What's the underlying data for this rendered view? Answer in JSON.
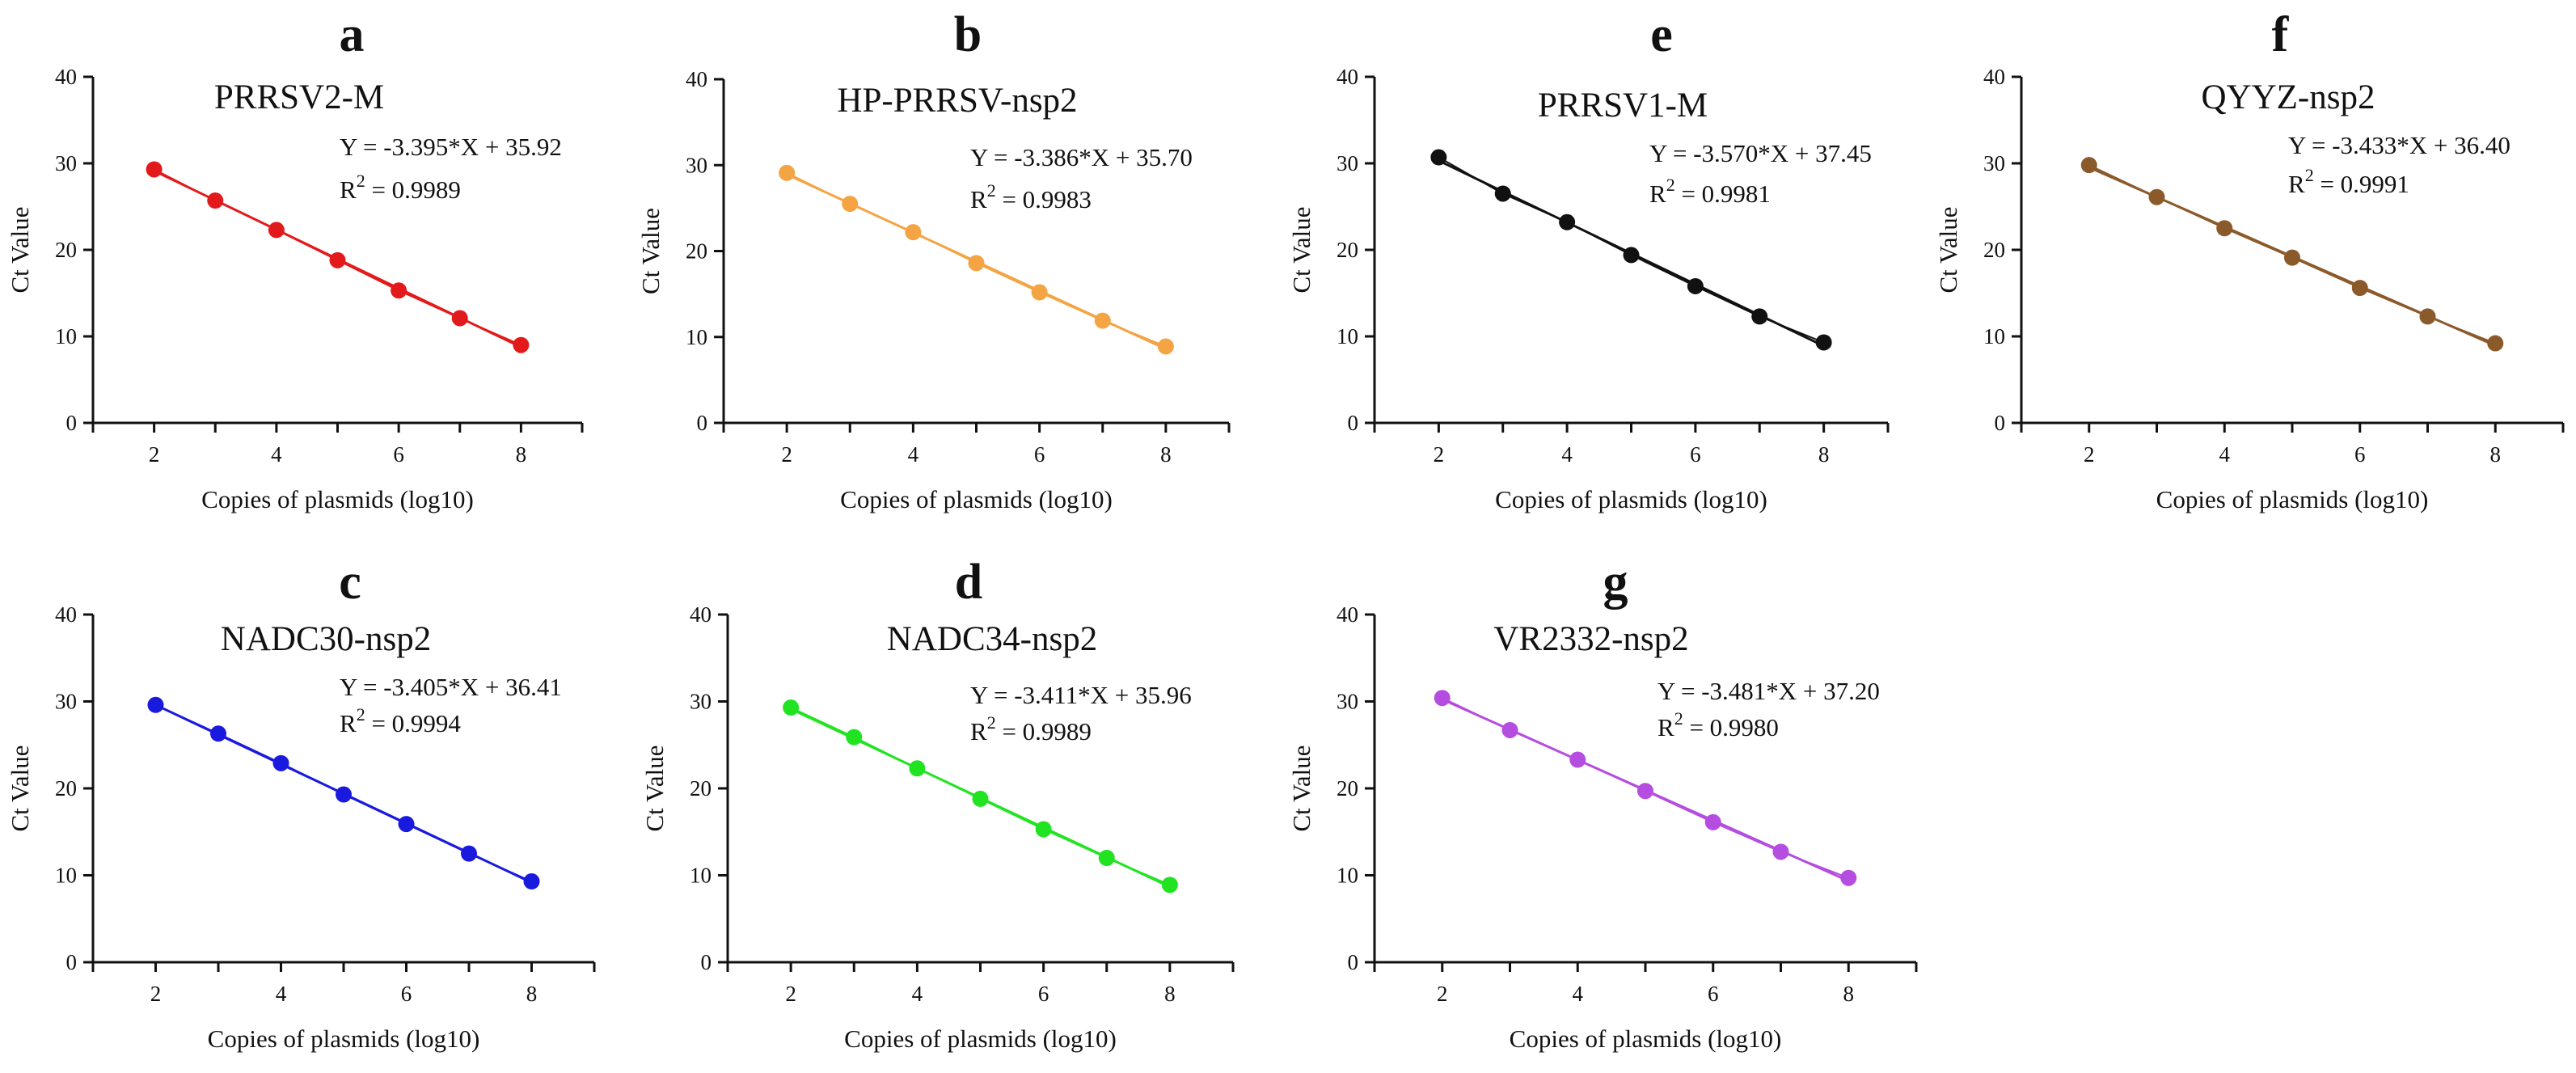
{
  "figure_title": "",
  "chart_data": [
    {
      "type": "line",
      "letter": "a",
      "title": "PRRSV2-M",
      "series": [
        {
          "name": "PRRSV2-M",
          "color": "#e31a1c",
          "x": [
            2,
            3,
            4,
            5,
            6,
            7,
            8
          ],
          "values": [
            29.3,
            25.7,
            22.3,
            18.8,
            15.3,
            12.1,
            9.0
          ]
        }
      ],
      "equation": "Y = -3.395*X + 35.92",
      "r2_prefix": "R",
      "r2_sup": "2",
      "r2_value": " = 0.9989",
      "slope": -3.395,
      "intercept": 35.92,
      "xlabel": "Copies of plasmids (log10)",
      "ylabel": "Ct Value",
      "xlim": [
        1,
        9
      ],
      "ylim": [
        0,
        40
      ],
      "xticks": [
        {
          "value": 2,
          "label": "2"
        },
        {
          "value": 4,
          "label": "4"
        },
        {
          "value": 6,
          "label": "6"
        },
        {
          "value": 8,
          "label": "8"
        }
      ],
      "yticks": [
        {
          "value": 0,
          "label": "0"
        },
        {
          "value": 10,
          "label": "10"
        },
        {
          "value": 20,
          "label": "20"
        },
        {
          "value": 30,
          "label": "30"
        },
        {
          "value": 40,
          "label": "40"
        }
      ]
    },
    {
      "type": "line",
      "letter": "b",
      "title": "HP-PRRSV-nsp2",
      "series": [
        {
          "name": "HP-PRRSV-nsp2",
          "color": "#f4a443",
          "x": [
            2,
            3,
            4,
            5,
            6,
            7,
            8
          ],
          "values": [
            29.1,
            25.5,
            22.2,
            18.6,
            15.2,
            11.9,
            8.9
          ]
        }
      ],
      "equation": "Y = -3.386*X + 35.70",
      "r2_prefix": "R",
      "r2_sup": "2",
      "r2_value": " = 0.9983",
      "slope": -3.386,
      "intercept": 35.7,
      "xlabel": "Copies of plasmids (log10)",
      "ylabel": "Ct Value",
      "xlim": [
        1,
        9
      ],
      "ylim": [
        0,
        40
      ],
      "xticks": [
        {
          "value": 2,
          "label": "2"
        },
        {
          "value": 4,
          "label": "4"
        },
        {
          "value": 6,
          "label": "6"
        },
        {
          "value": 8,
          "label": "8"
        }
      ],
      "yticks": [
        {
          "value": 0,
          "label": "0"
        },
        {
          "value": 10,
          "label": "10"
        },
        {
          "value": 20,
          "label": "20"
        },
        {
          "value": 30,
          "label": "30"
        },
        {
          "value": 40,
          "label": "40"
        }
      ]
    },
    {
      "type": "line",
      "letter": "e",
      "title": "PRRSV1-M",
      "series": [
        {
          "name": "PRRSV1-M",
          "color": "#111111",
          "x": [
            2,
            3,
            4,
            5,
            6,
            7,
            8
          ],
          "values": [
            30.7,
            26.5,
            23.2,
            19.4,
            15.8,
            12.3,
            9.3
          ]
        }
      ],
      "equation": "Y = -3.570*X + 37.45",
      "r2_prefix": "R",
      "r2_sup": "2",
      "r2_value": " = 0.9981",
      "slope": -3.57,
      "intercept": 37.45,
      "xlabel": "Copies of plasmids (log10)",
      "ylabel": "Ct Value",
      "xlim": [
        1,
        9
      ],
      "ylim": [
        0,
        40
      ],
      "xticks": [
        {
          "value": 2,
          "label": "2"
        },
        {
          "value": 4,
          "label": "4"
        },
        {
          "value": 6,
          "label": "6"
        },
        {
          "value": 8,
          "label": "8"
        }
      ],
      "yticks": [
        {
          "value": 0,
          "label": "0"
        },
        {
          "value": 10,
          "label": "10"
        },
        {
          "value": 20,
          "label": "20"
        },
        {
          "value": 30,
          "label": "30"
        },
        {
          "value": 40,
          "label": "40"
        }
      ]
    },
    {
      "type": "line",
      "letter": "f",
      "title": "QYYZ-nsp2",
      "series": [
        {
          "name": "QYYZ-nsp2",
          "color": "#8b5a2b",
          "x": [
            2,
            3,
            4,
            5,
            6,
            7,
            8
          ],
          "values": [
            29.8,
            26.1,
            22.5,
            19.1,
            15.6,
            12.3,
            9.2
          ]
        }
      ],
      "equation": "Y = -3.433*X + 36.40",
      "r2_prefix": "R",
      "r2_sup": "2",
      "r2_value": " = 0.9991",
      "slope": -3.433,
      "intercept": 36.4,
      "xlabel": "Copies of plasmids (log10)",
      "ylabel": "Ct Value",
      "xlim": [
        1,
        9
      ],
      "ylim": [
        0,
        40
      ],
      "xticks": [
        {
          "value": 2,
          "label": "2"
        },
        {
          "value": 4,
          "label": "4"
        },
        {
          "value": 6,
          "label": "6"
        },
        {
          "value": 8,
          "label": "8"
        }
      ],
      "yticks": [
        {
          "value": 0,
          "label": "0"
        },
        {
          "value": 10,
          "label": "10"
        },
        {
          "value": 20,
          "label": "20"
        },
        {
          "value": 30,
          "label": "30"
        },
        {
          "value": 40,
          "label": "40"
        }
      ]
    },
    {
      "type": "line",
      "letter": "c",
      "title": "NADC30-nsp2",
      "series": [
        {
          "name": "NADC30-nsp2",
          "color": "#1a1adf",
          "x": [
            2,
            3,
            4,
            5,
            6,
            7,
            8
          ],
          "values": [
            29.6,
            26.3,
            22.9,
            19.3,
            15.9,
            12.5,
            9.3
          ]
        }
      ],
      "equation": "Y = -3.405*X + 36.41",
      "r2_prefix": "R",
      "r2_sup": "2",
      "r2_value": " = 0.9994",
      "slope": -3.405,
      "intercept": 36.41,
      "xlabel": "Copies of plasmids (log10)",
      "ylabel": "Ct Value",
      "xlim": [
        1,
        9
      ],
      "ylim": [
        0,
        40
      ],
      "xticks": [
        {
          "value": 2,
          "label": "2"
        },
        {
          "value": 4,
          "label": "4"
        },
        {
          "value": 6,
          "label": "6"
        },
        {
          "value": 8,
          "label": "8"
        }
      ],
      "yticks": [
        {
          "value": 0,
          "label": "0"
        },
        {
          "value": 10,
          "label": "10"
        },
        {
          "value": 20,
          "label": "20"
        },
        {
          "value": 30,
          "label": "30"
        },
        {
          "value": 40,
          "label": "40"
        }
      ]
    },
    {
      "type": "line",
      "letter": "d",
      "title": "NADC34-nsp2",
      "series": [
        {
          "name": "NADC34-nsp2",
          "color": "#22e322",
          "x": [
            2,
            3,
            4,
            5,
            6,
            7,
            8
          ],
          "values": [
            29.3,
            25.9,
            22.3,
            18.8,
            15.3,
            12.0,
            8.9
          ]
        }
      ],
      "equation": "Y = -3.411*X + 35.96",
      "r2_prefix": "R",
      "r2_sup": "2",
      "r2_value": " = 0.9989",
      "slope": -3.411,
      "intercept": 35.96,
      "xlabel": "Copies of plasmids (log10)",
      "ylabel": "Ct Value",
      "xlim": [
        1,
        9
      ],
      "ylim": [
        0,
        40
      ],
      "xticks": [
        {
          "value": 2,
          "label": "2"
        },
        {
          "value": 4,
          "label": "4"
        },
        {
          "value": 6,
          "label": "6"
        },
        {
          "value": 8,
          "label": "8"
        }
      ],
      "yticks": [
        {
          "value": 0,
          "label": "0"
        },
        {
          "value": 10,
          "label": "10"
        },
        {
          "value": 20,
          "label": "20"
        },
        {
          "value": 30,
          "label": "30"
        },
        {
          "value": 40,
          "label": "40"
        }
      ]
    },
    {
      "type": "line",
      "letter": "g",
      "title": "VR2332-nsp2",
      "series": [
        {
          "name": "VR2332-nsp2",
          "color": "#b44de0",
          "x": [
            2,
            3,
            4,
            5,
            6,
            7,
            8
          ],
          "values": [
            30.4,
            26.7,
            23.3,
            19.7,
            16.1,
            12.7,
            9.7
          ]
        }
      ],
      "equation": "Y = -3.481*X + 37.20",
      "r2_prefix": "R",
      "r2_sup": "2",
      "r2_value": " = 0.9980",
      "slope": -3.481,
      "intercept": 37.2,
      "xlabel": "Copies of plasmids (log10)",
      "ylabel": "Ct Value",
      "xlim": [
        1,
        9
      ],
      "ylim": [
        0,
        40
      ],
      "xticks": [
        {
          "value": 2,
          "label": "2"
        },
        {
          "value": 4,
          "label": "4"
        },
        {
          "value": 6,
          "label": "6"
        },
        {
          "value": 8,
          "label": "8"
        }
      ],
      "yticks": [
        {
          "value": 0,
          "label": "0"
        },
        {
          "value": 10,
          "label": "10"
        },
        {
          "value": 20,
          "label": "20"
        },
        {
          "value": 30,
          "label": "30"
        },
        {
          "value": 40,
          "label": "40"
        }
      ]
    }
  ]
}
